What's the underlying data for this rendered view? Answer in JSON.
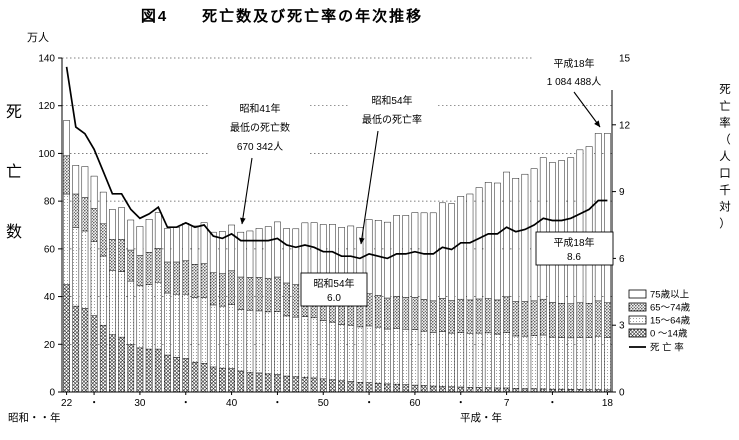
{
  "title": "図4　　死亡数及び死亡率の年次推移",
  "axes": {
    "left": {
      "unit": "万人",
      "vertical_label": "死亡数"
    },
    "right": {
      "vertical_label": "死亡率（人口千対）"
    },
    "x": {
      "era_left": "昭和・・年",
      "era_right": "平成・年"
    }
  },
  "legend": {
    "items": [
      {
        "label": "75歳以上",
        "swatch": "white"
      },
      {
        "label": "65～74歳",
        "swatch": "dark-dots"
      },
      {
        "label": "15～64歳",
        "swatch": "light-dots"
      },
      {
        "label": "0 ～14歳",
        "swatch": "crosshatch"
      }
    ],
    "line_label": "死 亡 率"
  },
  "annotations": {
    "h18_peak": {
      "line1": "平成18年",
      "line2": "1 084 488人"
    },
    "s41_min_deaths": {
      "line1": "昭和41年",
      "line2": "最低の死亡数",
      "line3": "670 342人"
    },
    "s54_min_rate": {
      "line1": "昭和54年",
      "line2": "最低の死亡率"
    },
    "s54_rate_box": {
      "line1": "昭和54年",
      "line2": "6.0"
    },
    "h18_rate_box": {
      "line1": "平成18年",
      "line2": "8.6"
    }
  },
  "chart_data": {
    "type": "bar",
    "subtype": "stacked-bars-with-line",
    "title": "死亡数及び死亡率の年次推移",
    "x_start_year": 1947,
    "x_end_year": 2006,
    "x_era_range": "昭和22年～平成18年",
    "units": {
      "bars": "万人 (10k persons)",
      "line": "人口千対 (per 1000 population)"
    },
    "left_axis_max": 140,
    "right_axis_max": 15,
    "left_ticks": [
      0,
      20,
      40,
      60,
      80,
      100,
      120,
      140
    ],
    "right_ticks": [
      0,
      3,
      6,
      9,
      12,
      15
    ],
    "x_ticks": [
      {
        "i": 0,
        "label": "22"
      },
      {
        "i": 3,
        "label": "・"
      },
      {
        "i": 8,
        "label": "30"
      },
      {
        "i": 13,
        "label": "・"
      },
      {
        "i": 18,
        "label": "40"
      },
      {
        "i": 23,
        "label": "・"
      },
      {
        "i": 28,
        "label": "50"
      },
      {
        "i": 33,
        "label": "・"
      },
      {
        "i": 38,
        "label": "60"
      },
      {
        "i": 43,
        "label": "・"
      },
      {
        "i": 48,
        "label": "7"
      },
      {
        "i": 53,
        "label": "・"
      },
      {
        "i": 59,
        "label": "18"
      }
    ],
    "series": [
      {
        "name": "0～14歳",
        "values": [
          45.0,
          36.0,
          35.0,
          32.0,
          28.0,
          24.0,
          23.0,
          20.0,
          18.5,
          18.0,
          18.0,
          15.5,
          14.5,
          14.0,
          12.5,
          12.0,
          10.5,
          10.0,
          9.8,
          8.8,
          8.3,
          8.0,
          7.6,
          7.3,
          6.7,
          6.4,
          6.2,
          5.9,
          5.5,
          5.1,
          4.7,
          4.4,
          4.1,
          3.9,
          3.7,
          3.4,
          3.3,
          3.1,
          2.9,
          2.7,
          2.5,
          2.4,
          2.2,
          2.1,
          2.0,
          1.9,
          1.8,
          1.7,
          1.7,
          1.5,
          1.4,
          1.4,
          1.3,
          1.2,
          1.2,
          1.1,
          1.1,
          1.0,
          1.0,
          0.9
        ]
      },
      {
        "name": "15～64歳",
        "values": [
          38.0,
          33.0,
          32.5,
          31.0,
          29.0,
          27.0,
          27.5,
          26.5,
          26.0,
          27.0,
          28.0,
          26.0,
          26.5,
          27.0,
          27.0,
          27.5,
          26.0,
          26.0,
          26.8,
          25.8,
          26.0,
          26.0,
          26.0,
          26.4,
          25.2,
          25.0,
          25.4,
          25.2,
          24.5,
          24.2,
          23.6,
          23.6,
          23.2,
          23.8,
          23.5,
          23.0,
          23.4,
          23.2,
          23.3,
          22.8,
          22.5,
          23.0,
          22.5,
          22.8,
          22.6,
          22.8,
          23.0,
          22.6,
          23.2,
          22.0,
          22.0,
          22.2,
          22.6,
          21.8,
          21.6,
          21.6,
          21.8,
          21.8,
          22.4,
          22.0
        ]
      },
      {
        "name": "65～74歳",
        "values": [
          16.0,
          14.0,
          14.0,
          14.0,
          13.5,
          13.0,
          13.5,
          13.0,
          12.7,
          13.5,
          14.2,
          13.0,
          13.5,
          14.0,
          14.0,
          14.3,
          13.5,
          13.6,
          14.2,
          13.6,
          13.7,
          14.0,
          14.1,
          14.5,
          13.8,
          13.6,
          14.0,
          13.9,
          13.6,
          13.5,
          13.2,
          13.2,
          13.0,
          13.5,
          13.3,
          13.0,
          13.4,
          13.3,
          13.4,
          13.3,
          13.2,
          13.8,
          13.6,
          14.0,
          14.0,
          14.3,
          14.5,
          14.3,
          15.0,
          14.4,
          14.5,
          14.6,
          15.0,
          14.5,
          14.4,
          14.3,
          14.5,
          14.4,
          14.8,
          14.5
        ]
      },
      {
        "name": "75歳以上",
        "values": [
          14.8,
          12.0,
          13.0,
          13.5,
          13.3,
          12.5,
          13.3,
          12.6,
          12.2,
          13.9,
          15.0,
          14.0,
          14.5,
          15.7,
          16.1,
          17.2,
          17.0,
          17.7,
          19.2,
          18.8,
          19.5,
          20.6,
          21.6,
          23.1,
          22.8,
          23.4,
          25.3,
          26.0,
          26.6,
          27.5,
          27.5,
          28.4,
          28.7,
          31.1,
          31.5,
          31.8,
          33.9,
          34.4,
          35.6,
          36.3,
          36.9,
          40.1,
          40.6,
          43.1,
          44.4,
          46.7,
          48.6,
          49.0,
          52.3,
          51.7,
          53.4,
          55.4,
          59.3,
          58.7,
          59.8,
          61.2,
          64.1,
          65.7,
          70.2,
          71.0
        ]
      }
    ],
    "line": {
      "name": "死亡率",
      "values": [
        14.6,
        11.9,
        11.6,
        10.9,
        9.9,
        8.9,
        8.9,
        8.2,
        7.8,
        8.0,
        8.3,
        7.4,
        7.4,
        7.6,
        7.4,
        7.5,
        7.0,
        6.9,
        7.1,
        6.8,
        6.8,
        6.8,
        6.8,
        6.9,
        6.6,
        6.5,
        6.6,
        6.5,
        6.3,
        6.3,
        6.1,
        6.1,
        6.0,
        6.2,
        6.1,
        6.0,
        6.2,
        6.2,
        6.3,
        6.2,
        6.2,
        6.5,
        6.4,
        6.7,
        6.7,
        6.9,
        7.1,
        7.1,
        7.4,
        7.2,
        7.3,
        7.5,
        7.8,
        7.7,
        7.7,
        7.8,
        8.0,
        8.2,
        8.6,
        8.6
      ]
    },
    "key_points": {
      "min_deaths": {
        "era_year": "昭和41年",
        "deaths": "670 342人"
      },
      "min_rate": {
        "era_year": "昭和54年",
        "rate": 6.0
      },
      "latest": {
        "era_year": "平成18年",
        "deaths": "1 084 488人",
        "rate": 8.6
      }
    }
  }
}
